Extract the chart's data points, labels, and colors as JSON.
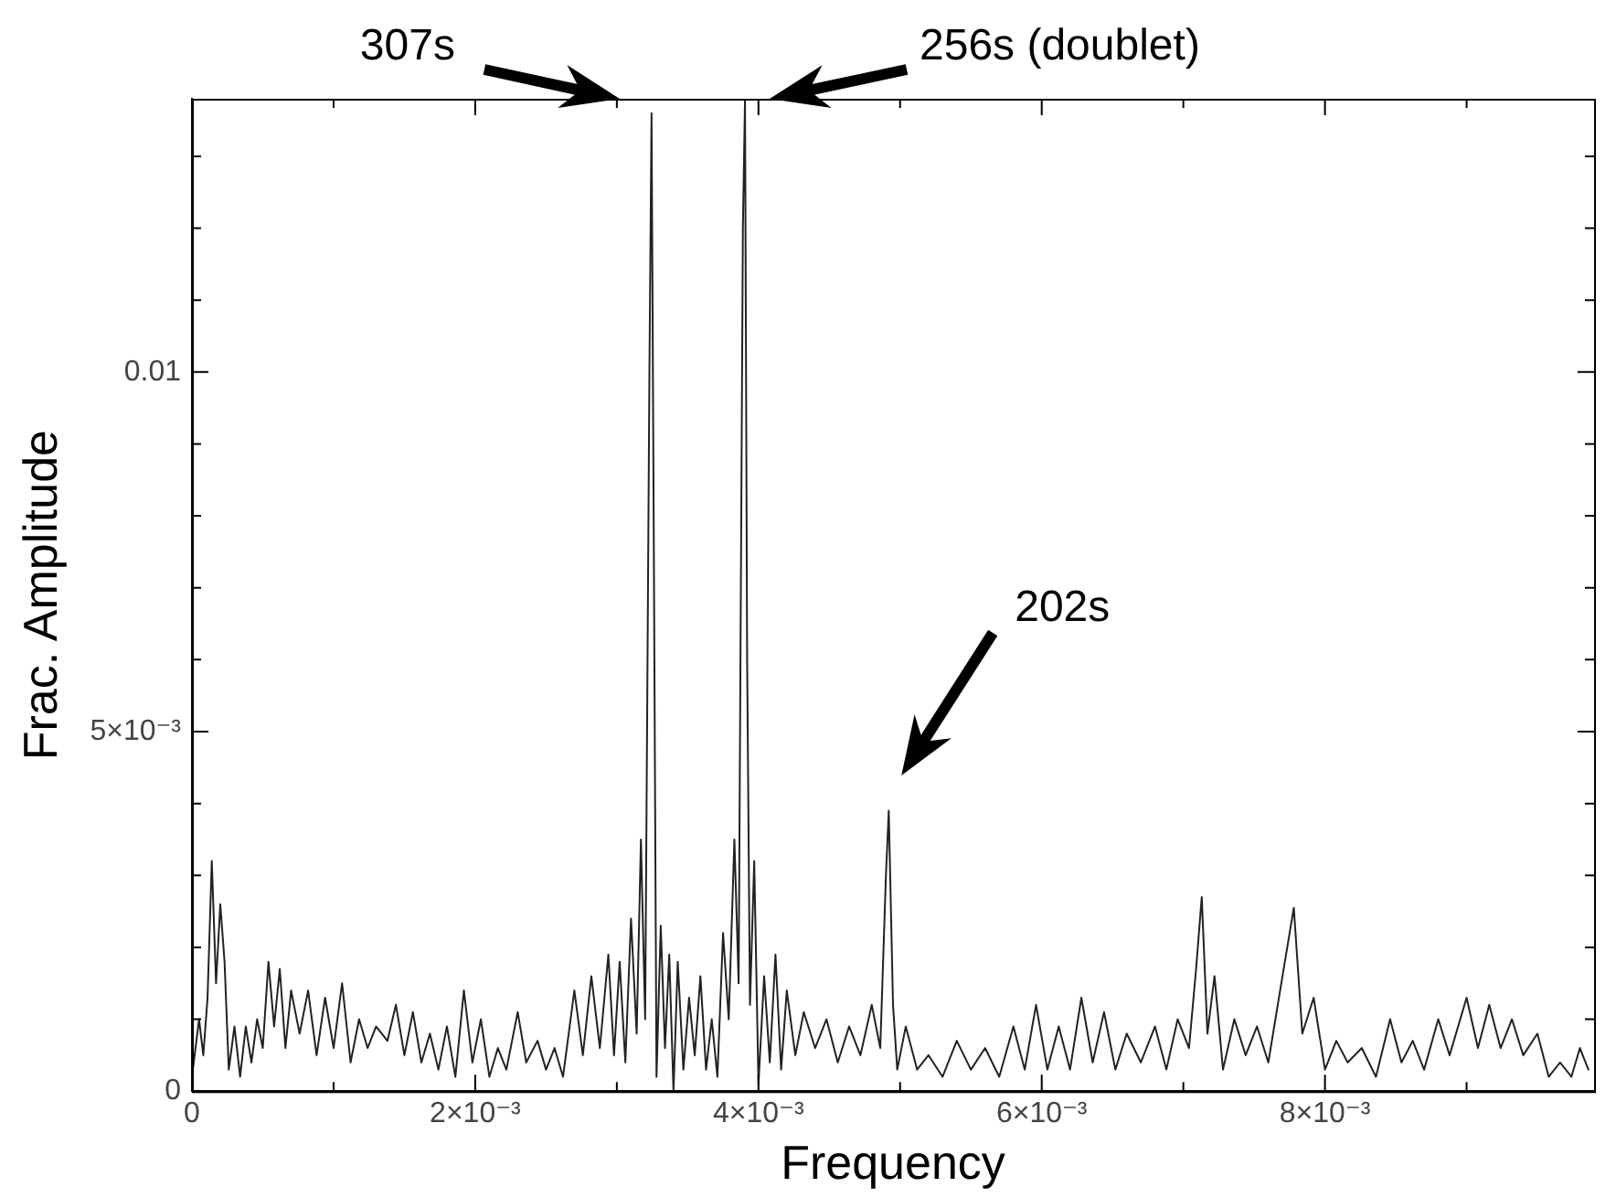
{
  "chart_data": {
    "type": "line",
    "xlabel": "Frequency",
    "ylabel": "Frac. Amplitude",
    "xlim": [
      0,
      0.0099
    ],
    "ylim": [
      0,
      0.0138
    ],
    "xticks": [
      {
        "value": 0,
        "label": "0"
      },
      {
        "value": 0.001,
        "label": null
      },
      {
        "value": 0.002,
        "label": "2×10⁻³"
      },
      {
        "value": 0.003,
        "label": null
      },
      {
        "value": 0.004,
        "label": "4×10⁻³"
      },
      {
        "value": 0.005,
        "label": null
      },
      {
        "value": 0.006,
        "label": "6×10⁻³"
      },
      {
        "value": 0.007,
        "label": null
      },
      {
        "value": 0.008,
        "label": "8×10⁻³"
      },
      {
        "value": 0.009,
        "label": null
      }
    ],
    "yticks": [
      {
        "value": 0,
        "label": "0"
      },
      {
        "value": 0.001,
        "label": null
      },
      {
        "value": 0.002,
        "label": null
      },
      {
        "value": 0.003,
        "label": null
      },
      {
        "value": 0.004,
        "label": null
      },
      {
        "value": 0.005,
        "label": "5×10⁻³"
      },
      {
        "value": 0.006,
        "label": null
      },
      {
        "value": 0.007,
        "label": null
      },
      {
        "value": 0.008,
        "label": null
      },
      {
        "value": 0.009,
        "label": null
      },
      {
        "value": 0.01,
        "label": "0.01"
      },
      {
        "value": 0.011,
        "label": null
      },
      {
        "value": 0.012,
        "label": null
      },
      {
        "value": 0.013,
        "label": null
      }
    ],
    "grid": false,
    "legend": false,
    "marker": "none",
    "line_style": "solid",
    "annotations": [
      "307s",
      "256s (doublet)",
      "202s"
    ],
    "series": [
      {
        "color": "#222222",
        "x": [
          0,
          5e-05,
          8e-05,
          0.00011,
          0.00014,
          0.00017,
          0.0002,
          0.00023,
          0.00026,
          0.0003,
          0.00034,
          0.00038,
          0.00042,
          0.00046,
          0.0005,
          0.00054,
          0.00058,
          0.00062,
          0.00066,
          0.0007,
          0.00076,
          0.00082,
          0.00088,
          0.00094,
          0.001,
          0.00106,
          0.00112,
          0.00118,
          0.00124,
          0.0013,
          0.00138,
          0.00144,
          0.0015,
          0.00156,
          0.00162,
          0.00168,
          0.00174,
          0.0018,
          0.00186,
          0.00192,
          0.00198,
          0.00204,
          0.0021,
          0.00216,
          0.00222,
          0.0023,
          0.00236,
          0.00244,
          0.0025,
          0.00256,
          0.00262,
          0.0027,
          0.00276,
          0.00282,
          0.00288,
          0.00294,
          0.00298,
          0.00302,
          0.00306,
          0.0031,
          0.00314,
          0.00317,
          0.0032,
          0.00323,
          0.003245,
          0.00326,
          0.00328,
          0.00331,
          0.00334,
          0.00337,
          0.0034,
          0.00343,
          0.00347,
          0.00351,
          0.00355,
          0.00359,
          0.00363,
          0.00367,
          0.00371,
          0.00375,
          0.00379,
          0.00383,
          0.00386,
          0.00389,
          0.003905,
          0.00392,
          0.00394,
          0.00397,
          0.004,
          0.00404,
          0.00408,
          0.00412,
          0.00416,
          0.0042,
          0.00426,
          0.00432,
          0.0044,
          0.00448,
          0.00456,
          0.00464,
          0.00472,
          0.0048,
          0.00486,
          0.0049,
          0.00492,
          0.00495,
          0.00498,
          0.00504,
          0.00512,
          0.0052,
          0.0053,
          0.0054,
          0.0055,
          0.0056,
          0.0057,
          0.0058,
          0.00588,
          0.00596,
          0.00604,
          0.00612,
          0.0062,
          0.00628,
          0.00636,
          0.00644,
          0.00652,
          0.0066,
          0.0067,
          0.0068,
          0.00688,
          0.00696,
          0.00704,
          0.00709,
          0.00713,
          0.00717,
          0.00722,
          0.00728,
          0.00736,
          0.00744,
          0.00752,
          0.0076,
          0.0077,
          0.00778,
          0.00784,
          0.00792,
          0.008,
          0.00808,
          0.00816,
          0.00826,
          0.00836,
          0.00846,
          0.00854,
          0.00862,
          0.0087,
          0.0088,
          0.00888,
          0.009,
          0.00908,
          0.00916,
          0.00924,
          0.00932,
          0.0094,
          0.0095,
          0.00958,
          0.00966,
          0.00974,
          0.0098,
          0.00986
        ],
        "values": [
          0.0002,
          0.001,
          0.0005,
          0.0013,
          0.0032,
          0.0015,
          0.0026,
          0.0018,
          0.0003,
          0.0009,
          0.0002,
          0.0009,
          0.0004,
          0.001,
          0.0006,
          0.0018,
          0.0009,
          0.0017,
          0.0006,
          0.0014,
          0.0008,
          0.0014,
          0.0005,
          0.0013,
          0.0006,
          0.0015,
          0.0004,
          0.001,
          0.0006,
          0.0009,
          0.0007,
          0.0012,
          0.0005,
          0.0011,
          0.0004,
          0.0008,
          0.0003,
          0.0009,
          0.0002,
          0.0014,
          0.0004,
          0.001,
          0.0002,
          0.0006,
          0.0003,
          0.0011,
          0.0004,
          0.0007,
          0.0003,
          0.0006,
          0.0002,
          0.0014,
          0.0005,
          0.0016,
          0.0006,
          0.0019,
          0.0005,
          0.0018,
          0.0004,
          0.0024,
          0.0008,
          0.0035,
          0.001,
          0.01,
          0.0136,
          0.008,
          0.0002,
          0.0023,
          0.0006,
          0.0019,
          0,
          0.0018,
          0.0003,
          0.0013,
          0.0005,
          0.0016,
          0.0003,
          0.001,
          0.0002,
          0.0022,
          0.001,
          0.0035,
          0.0015,
          0.012,
          0.0138,
          0.006,
          0.0012,
          0.0032,
          0.0001,
          0.0016,
          0.0004,
          0.0019,
          0.0003,
          0.0014,
          0.0005,
          0.0011,
          0.0006,
          0.001,
          0.0004,
          0.0009,
          0.0005,
          0.0012,
          0.0006,
          0.003,
          0.0039,
          0.0012,
          0.0003,
          0.0009,
          0.0003,
          0.0005,
          0.0002,
          0.0007,
          0.0003,
          0.0006,
          0.0002,
          0.0009,
          0.0003,
          0.0012,
          0.0003,
          0.0009,
          0.0003,
          0.0013,
          0.0004,
          0.0011,
          0.0003,
          0.0008,
          0.0004,
          0.0009,
          0.0003,
          0.001,
          0.0006,
          0.0017,
          0.0027,
          0.0008,
          0.0016,
          0.0003,
          0.001,
          0.0005,
          0.0009,
          0.0004,
          0.0016,
          0.00255,
          0.0008,
          0.0013,
          0.0003,
          0.0007,
          0.0004,
          0.0006,
          0.0002,
          0.001,
          0.0004,
          0.0007,
          0.0003,
          0.001,
          0.0005,
          0.0013,
          0.0006,
          0.0012,
          0.0006,
          0.001,
          0.0005,
          0.0008,
          0.0002,
          0.0004,
          0.0002,
          0.0006,
          0.0003
        ]
      }
    ]
  }
}
